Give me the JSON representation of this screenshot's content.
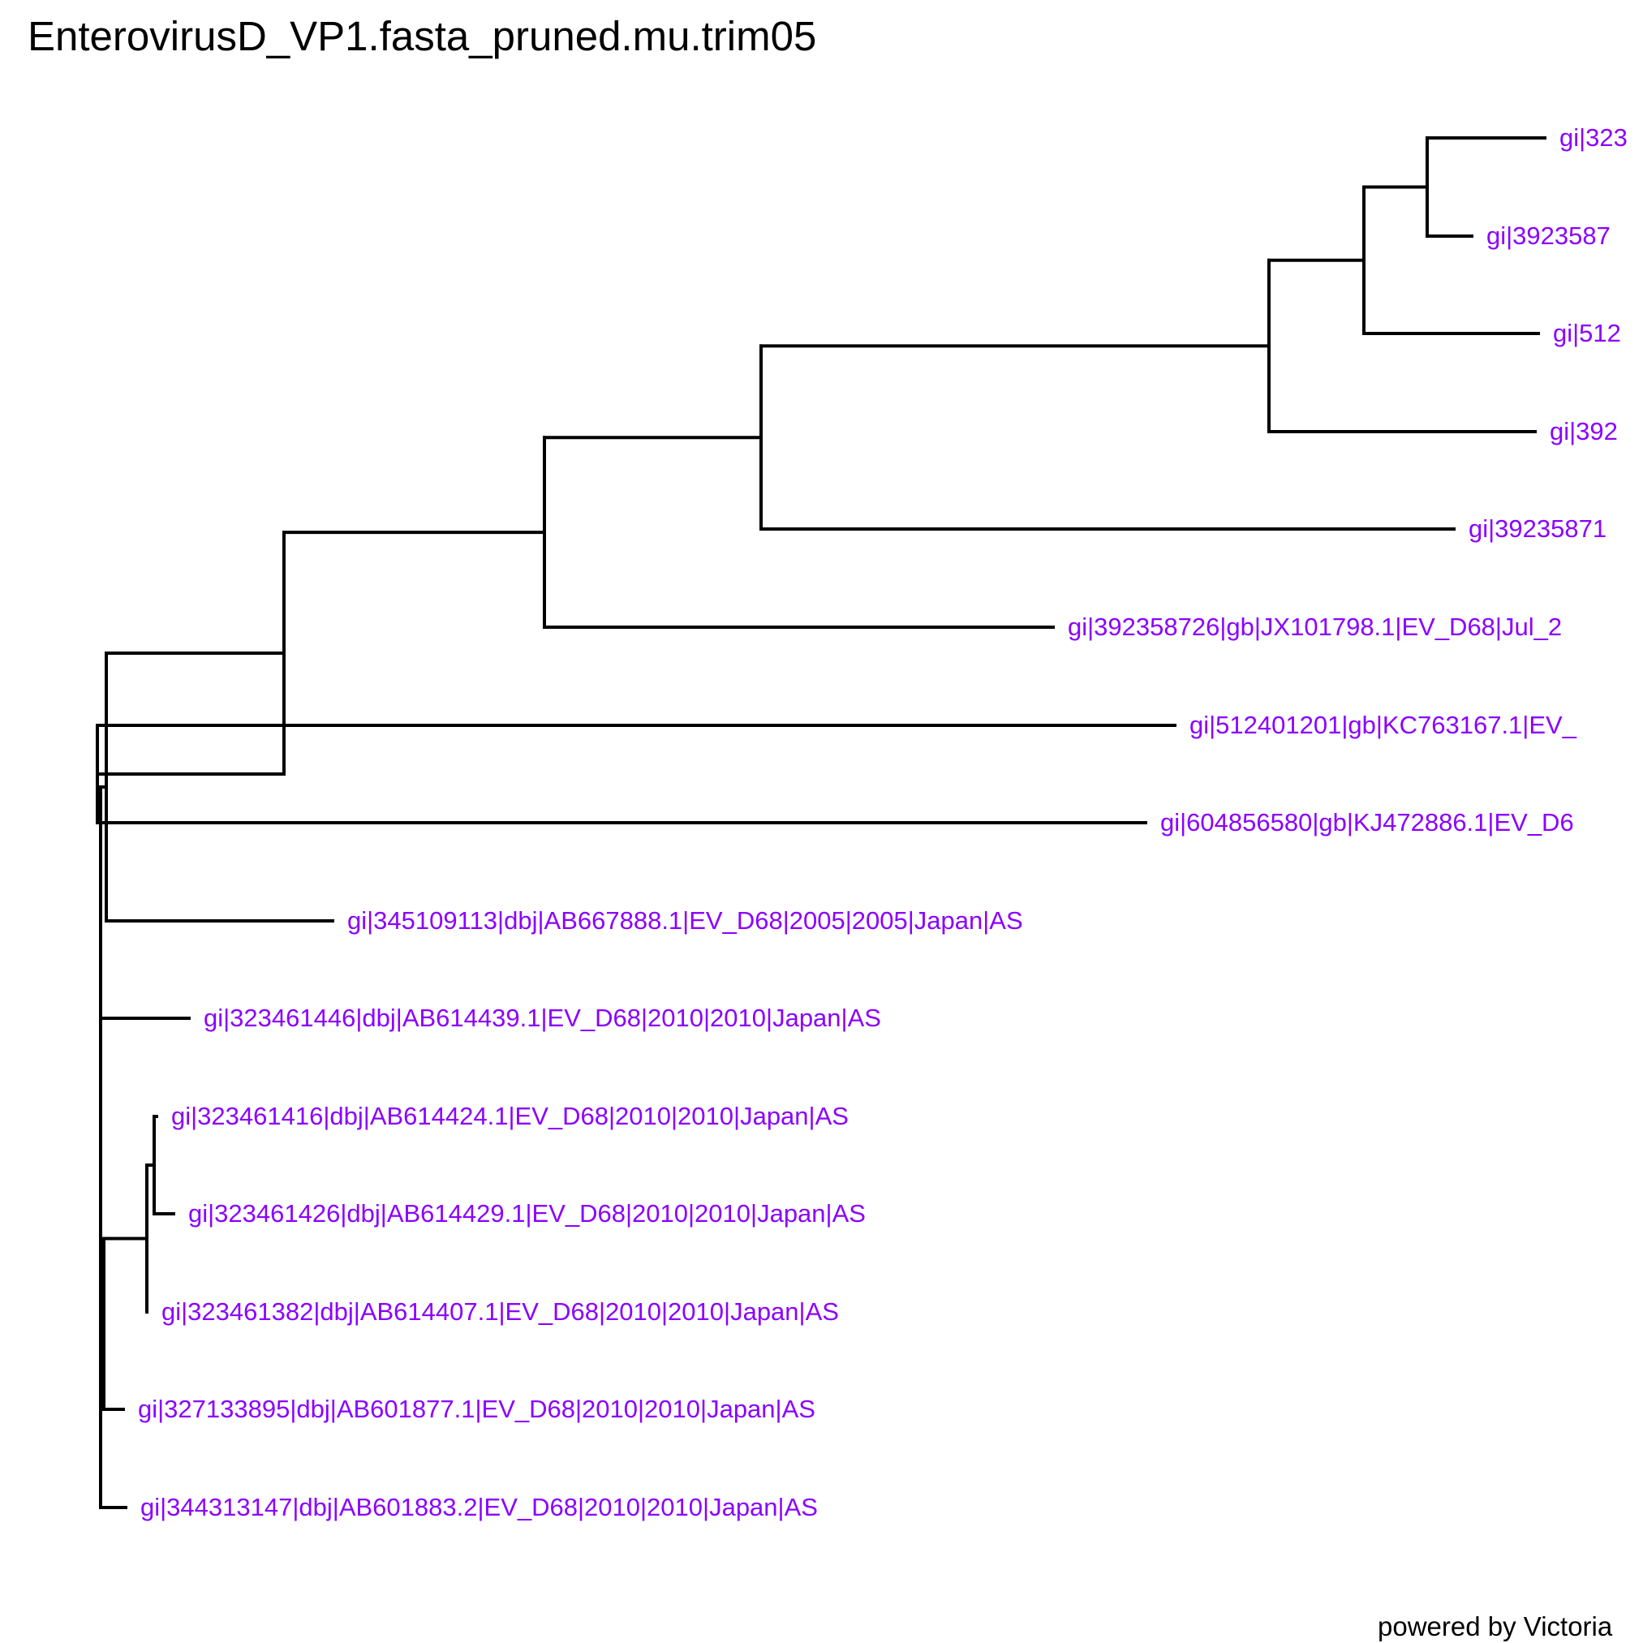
{
  "title": "EnterovirusD_VP1.fasta_pruned.mu.trim05",
  "footer": "powered by Victoria",
  "label_color": "#8B00FF",
  "tips": [
    {
      "id": "t1",
      "label": "gi|323"
    },
    {
      "id": "t2",
      "label": "gi|3923587"
    },
    {
      "id": "t3",
      "label": "gi|512"
    },
    {
      "id": "t4",
      "label": "gi|392"
    },
    {
      "id": "t5",
      "label": "gi|39235871"
    },
    {
      "id": "t6",
      "label": "gi|392358726|gb|JX101798.1|EV_D68|Jul_2"
    },
    {
      "id": "t7",
      "label": "gi|512401201|gb|KC763167.1|EV_"
    },
    {
      "id": "t8",
      "label": "gi|604856580|gb|KJ472886.1|EV_D6"
    },
    {
      "id": "t9",
      "label": "gi|345109113|dbj|AB667888.1|EV_D68|2005|2005|Japan|AS"
    },
    {
      "id": "t10",
      "label": "gi|323461446|dbj|AB614439.1|EV_D68|2010|2010|Japan|AS"
    },
    {
      "id": "t11",
      "label": "gi|323461416|dbj|AB614424.1|EV_D68|2010|2010|Japan|AS"
    },
    {
      "id": "t12",
      "label": "gi|323461426|dbj|AB614429.1|EV_D68|2010|2010|Japan|AS"
    },
    {
      "id": "t13",
      "label": "gi|323461382|dbj|AB614407.1|EV_D68|2010|2010|Japan|AS"
    },
    {
      "id": "t14",
      "label": "gi|327133895|dbj|AB601877.1|EV_D68|2010|2010|Japan|AS"
    },
    {
      "id": "t15",
      "label": "gi|344313147|dbj|AB601883.2|EV_D68|2010|2010|Japan|AS"
    }
  ],
  "tree": {
    "children": [
      {
        "children": [
          {
            "children": [
              {
                "children": [
                  {
                    "children": [
                      {
                        "children": [
                          {
                            "children": [
                              {
                                "children": [
                                  {
                                    "tip": "t1"
                                  },
                                  {
                                    "tip": "t2"
                                  }
                                ]
                              },
                              {
                                "tip": "t3"
                              }
                            ]
                          },
                          {
                            "tip": "t4"
                          }
                        ]
                      },
                      {
                        "tip": "t5"
                      }
                    ]
                  },
                  {
                    "tip": "t6"
                  }
                ]
              },
              {
                "children": [
                  {
                    "tip": "t7"
                  },
                  {
                    "tip": "t8"
                  }
                ]
              }
            ]
          },
          {
            "tip": "t9"
          }
        ]
      },
      {
        "tip": "t10"
      },
      {
        "children": [
          {
            "children": [
              {
                "children": [
                  {
                    "tip": "t11"
                  },
                  {
                    "tip": "t12"
                  }
                ]
              },
              {
                "tip": "t13"
              }
            ]
          },
          {
            "tip": "t14"
          }
        ]
      },
      {
        "tip": "t15"
      }
    ]
  }
}
